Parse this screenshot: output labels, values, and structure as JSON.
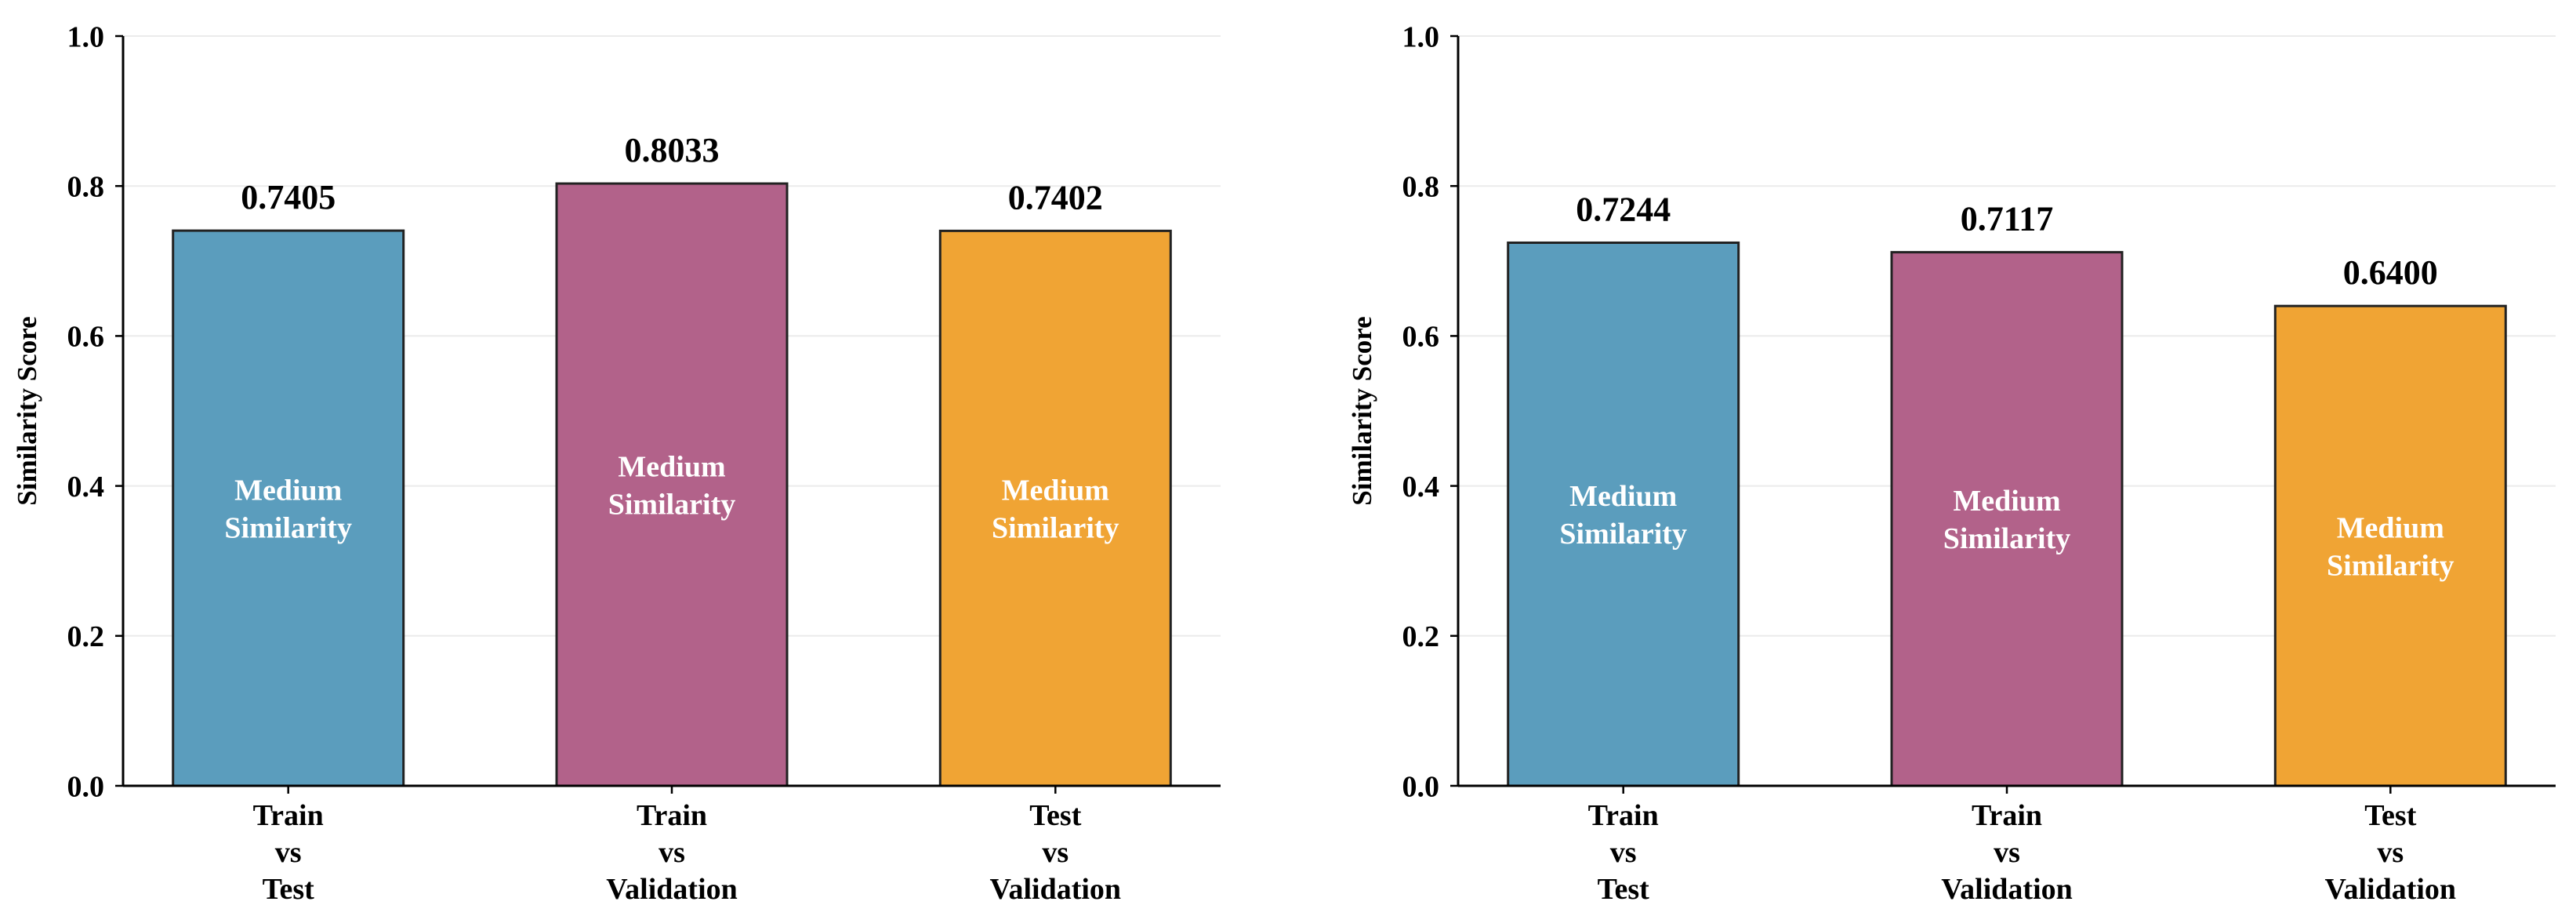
{
  "chart_data": [
    {
      "type": "bar",
      "categories": [
        [
          "Train",
          "vs",
          "Test"
        ],
        [
          "Train",
          "vs",
          "Validation"
        ],
        [
          "Test",
          "vs",
          "Validation"
        ]
      ],
      "values": [
        0.7405,
        0.8033,
        0.7402
      ],
      "value_labels": [
        "0.7405",
        "0.8033",
        "0.7402"
      ],
      "bar_labels": [
        [
          "Medium",
          "Similarity"
        ],
        [
          "Medium",
          "Similarity"
        ],
        [
          "Medium",
          "Similarity"
        ]
      ],
      "bar_colors": [
        "#5b9dbd",
        "#b2628a",
        "#f0a434"
      ],
      "title": "",
      "xlabel": "",
      "ylabel": "Similarity Score",
      "ylim": [
        0.0,
        1.0
      ],
      "yticks": [
        0.0,
        0.2,
        0.4,
        0.6,
        0.8,
        1.0
      ],
      "ytick_labels": [
        "0.0",
        "0.2",
        "0.4",
        "0.6",
        "0.8",
        "1.0"
      ],
      "grid": "horizontal"
    },
    {
      "type": "bar",
      "categories": [
        [
          "Train",
          "vs",
          "Test"
        ],
        [
          "Train",
          "vs",
          "Validation"
        ],
        [
          "Test",
          "vs",
          "Validation"
        ]
      ],
      "values": [
        0.7244,
        0.7117,
        0.64
      ],
      "value_labels": [
        "0.7244",
        "0.7117",
        "0.6400"
      ],
      "bar_labels": [
        [
          "Medium",
          "Similarity"
        ],
        [
          "Medium",
          "Similarity"
        ],
        [
          "Medium",
          "Similarity"
        ]
      ],
      "bar_colors": [
        "#5b9dbd",
        "#b2628a",
        "#f0a434"
      ],
      "title": "",
      "xlabel": "",
      "ylabel": "Similarity Score",
      "ylim": [
        0.0,
        1.0
      ],
      "yticks": [
        0.0,
        0.2,
        0.4,
        0.6,
        0.8,
        1.0
      ],
      "ytick_labels": [
        "0.0",
        "0.2",
        "0.4",
        "0.6",
        "0.8",
        "1.0"
      ],
      "grid": "horizontal"
    }
  ]
}
